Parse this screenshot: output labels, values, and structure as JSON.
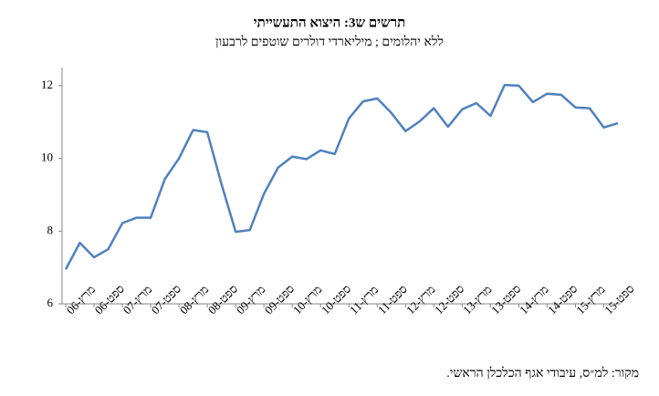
{
  "chart_data": {
    "type": "line",
    "title": "תרשים ש3: היצוא התעשייתי",
    "subtitle": "ללא יהלומים ; מיליארדי דולרים שוטפים לרבעון",
    "source": "מקור: למ״ס, עיבודי אגף הכלכלן הראשי.",
    "categories": [
      "מרץ-06",
      null,
      "ספט-06",
      null,
      "מרץ-07",
      null,
      "ספט-07",
      null,
      "מרץ-08",
      null,
      "ספט-08",
      null,
      "מרץ-09",
      null,
      "ספט-09",
      null,
      "מרץ-10",
      null,
      "ספט-10",
      null,
      "מרץ-11",
      null,
      "ספט-11",
      null,
      "מרץ-12",
      null,
      "ספט-12",
      null,
      "מרץ-13",
      null,
      "ספט-13",
      null,
      "מרץ-14",
      null,
      "ספט-14",
      null,
      "מרץ-15",
      null,
      "ספט-15",
      null
    ],
    "series": [
      {
        "color": "#4f81bd",
        "values": [
          6.95,
          7.68,
          7.28,
          7.5,
          8.22,
          8.37,
          8.37,
          9.43,
          10.0,
          10.78,
          10.72,
          9.3,
          7.98,
          8.03,
          9.03,
          9.75,
          10.05,
          9.98,
          10.22,
          10.12,
          11.1,
          11.57,
          11.65,
          11.25,
          10.75,
          11.02,
          11.38,
          10.87,
          11.35,
          11.52,
          11.17,
          12.02,
          12.0,
          11.55,
          11.78,
          11.75,
          11.4,
          11.38,
          10.85,
          10.97
        ]
      }
    ],
    "ylim": [
      6,
      12.5
    ],
    "yticks": [
      6,
      8,
      10,
      12
    ],
    "grid": false
  }
}
